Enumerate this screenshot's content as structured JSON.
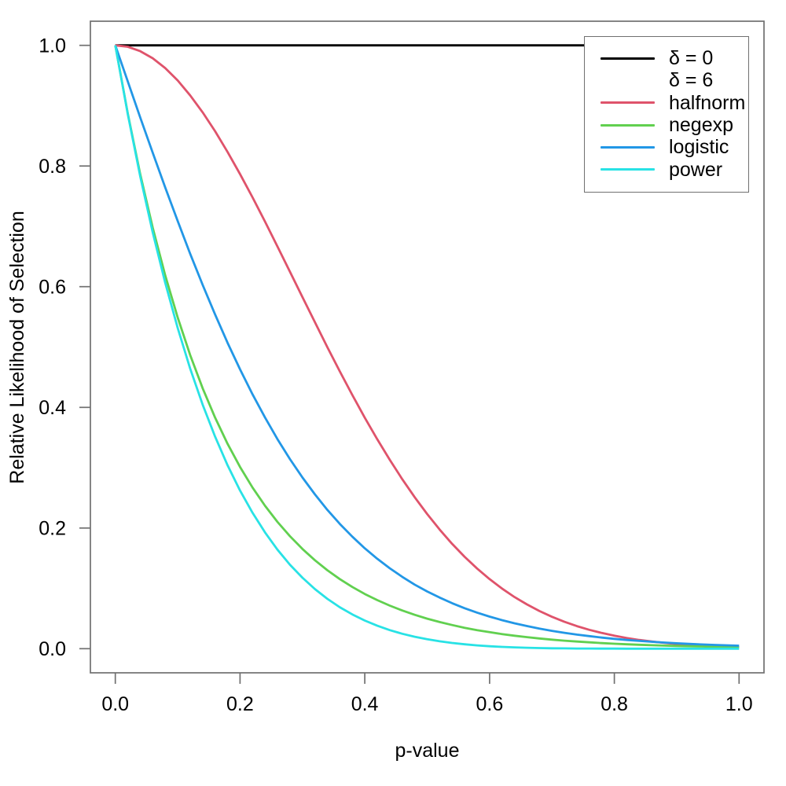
{
  "chart_data": {
    "type": "line",
    "title": "",
    "xlabel": "p-value",
    "ylabel": "Relative Likelihood of Selection",
    "xlim": [
      0,
      1
    ],
    "ylim": [
      0,
      1
    ],
    "grid": false,
    "legend_position": "top-right",
    "background_color": "#ffffff",
    "axis_box_color": "#707070",
    "text_color": "#000000",
    "xticks": [
      {
        "value": 0.0,
        "label": "0.0"
      },
      {
        "value": 0.2,
        "label": "0.2"
      },
      {
        "value": 0.4,
        "label": "0.4"
      },
      {
        "value": 0.6,
        "label": "0.6"
      },
      {
        "value": 0.8,
        "label": "0.8"
      },
      {
        "value": 1.0,
        "label": "1.0"
      }
    ],
    "yticks": [
      {
        "value": 0.0,
        "label": "0.0"
      },
      {
        "value": 0.2,
        "label": "0.2"
      },
      {
        "value": 0.4,
        "label": "0.4"
      },
      {
        "value": 0.6,
        "label": "0.6"
      },
      {
        "value": 0.8,
        "label": "0.8"
      },
      {
        "value": 1.0,
        "label": "1.0"
      }
    ],
    "x": [
      0,
      0.02,
      0.04,
      0.06,
      0.08,
      0.1,
      0.12,
      0.14,
      0.16,
      0.18,
      0.2,
      0.22,
      0.24,
      0.26,
      0.28,
      0.3,
      0.32,
      0.34,
      0.36,
      0.38,
      0.4,
      0.42,
      0.44,
      0.46,
      0.48,
      0.5,
      0.52,
      0.54,
      0.56,
      0.58,
      0.6,
      0.62,
      0.64,
      0.66,
      0.68,
      0.7,
      0.72,
      0.74,
      0.76,
      0.78,
      0.8,
      0.82,
      0.84,
      0.86,
      0.88,
      0.9,
      0.92,
      0.94,
      0.96,
      0.98,
      1
    ],
    "series": [
      {
        "key": "delta-0",
        "name": "δ = 0",
        "color": "#000000",
        "x": [
          0,
          1
        ],
        "values": [
          1,
          1
        ]
      },
      {
        "key": "halfnorm",
        "name": "halfnorm",
        "color": "#DF536B",
        "values": [
          1,
          0.9976,
          0.9904,
          0.9786,
          0.9623,
          0.9418,
          0.9172,
          0.889,
          0.8576,
          0.8233,
          0.7866,
          0.748,
          0.7078,
          0.6666,
          0.6248,
          0.5827,
          0.541,
          0.4998,
          0.4595,
          0.4204,
          0.3829,
          0.347,
          0.313,
          0.2809,
          0.251,
          0.2231,
          0.1974,
          0.1738,
          0.1523,
          0.1329,
          0.1153,
          0.0996,
          0.0856,
          0.0733,
          0.0624,
          0.0529,
          0.0446,
          0.0374,
          0.0313,
          0.026,
          0.0215,
          0.0177,
          0.0145,
          0.0118,
          0.0096,
          0.0078,
          0.0062,
          0.005,
          0.004,
          0.0031,
          0.0025
        ]
      },
      {
        "key": "negexp",
        "name": "negexp",
        "color": "#61D04F",
        "values": [
          1,
          0.8869,
          0.7866,
          0.6977,
          0.6188,
          0.5488,
          0.4868,
          0.4317,
          0.3829,
          0.3396,
          0.3012,
          0.2671,
          0.2369,
          0.2101,
          0.1864,
          0.1653,
          0.1466,
          0.13,
          0.1153,
          0.1023,
          0.0907,
          0.0805,
          0.0714,
          0.0633,
          0.0561,
          0.0498,
          0.0442,
          0.0392,
          0.0347,
          0.0308,
          0.0273,
          0.0242,
          0.0215,
          0.0191,
          0.0169,
          0.015,
          0.0133,
          0.0118,
          0.0105,
          0.0093,
          0.0082,
          0.0073,
          0.0065,
          0.0057,
          0.0051,
          0.0045,
          0.004,
          0.0036,
          0.0032,
          0.0028,
          0.0025
        ]
      },
      {
        "key": "logistic",
        "name": "logistic",
        "color": "#2297E6",
        "values": [
          1,
          0.9401,
          0.8806,
          0.822,
          0.7645,
          0.7087,
          0.6548,
          0.6031,
          0.5538,
          0.507,
          0.463,
          0.4216,
          0.3831,
          0.3473,
          0.3142,
          0.2837,
          0.2557,
          0.2301,
          0.2068,
          0.1856,
          0.1663,
          0.149,
          0.1333,
          0.1191,
          0.1062,
          0.0949,
          0.0847,
          0.0754,
          0.0671,
          0.0598,
          0.0531,
          0.0473,
          0.0421,
          0.0375,
          0.0332,
          0.0296,
          0.0263,
          0.0233,
          0.0208,
          0.0184,
          0.0163,
          0.0145,
          0.0129,
          0.0114,
          0.0101,
          0.009,
          0.008,
          0.0071,
          0.0063,
          0.0056,
          0.0049
        ]
      },
      {
        "key": "power",
        "name": "power",
        "color": "#28E2E5",
        "values": [
          1,
          0.8858,
          0.7828,
          0.6899,
          0.6064,
          0.5314,
          0.4644,
          0.4046,
          0.3513,
          0.304,
          0.2621,
          0.2252,
          0.1927,
          0.1642,
          0.1392,
          0.1176,
          0.0988,
          0.0826,
          0.0687,
          0.0568,
          0.0467,
          0.0381,
          0.0308,
          0.0248,
          0.0198,
          0.0156,
          0.0122,
          0.0095,
          0.0073,
          0.0055,
          0.0041,
          0.003,
          0.0022,
          0.0016,
          0.0011,
          0.0007,
          0.0005,
          0.0003,
          0.0002,
          0.0001,
          0.0001,
          0,
          0,
          0,
          0,
          0,
          0,
          0,
          0,
          0,
          0
        ]
      }
    ],
    "legend": [
      {
        "key": "delta-0",
        "label": "δ = 0",
        "color": "#000000",
        "line": true
      },
      {
        "key": "delta-6",
        "label": "δ = 6",
        "color": null,
        "line": false
      },
      {
        "key": "halfnorm",
        "label": "halfnorm",
        "color": "#DF536B",
        "line": true
      },
      {
        "key": "negexp",
        "label": "negexp",
        "color": "#61D04F",
        "line": true
      },
      {
        "key": "logistic",
        "label": "logistic",
        "color": "#2297E6",
        "line": true
      },
      {
        "key": "power",
        "label": "power",
        "color": "#28E2E5",
        "line": true
      }
    ]
  }
}
